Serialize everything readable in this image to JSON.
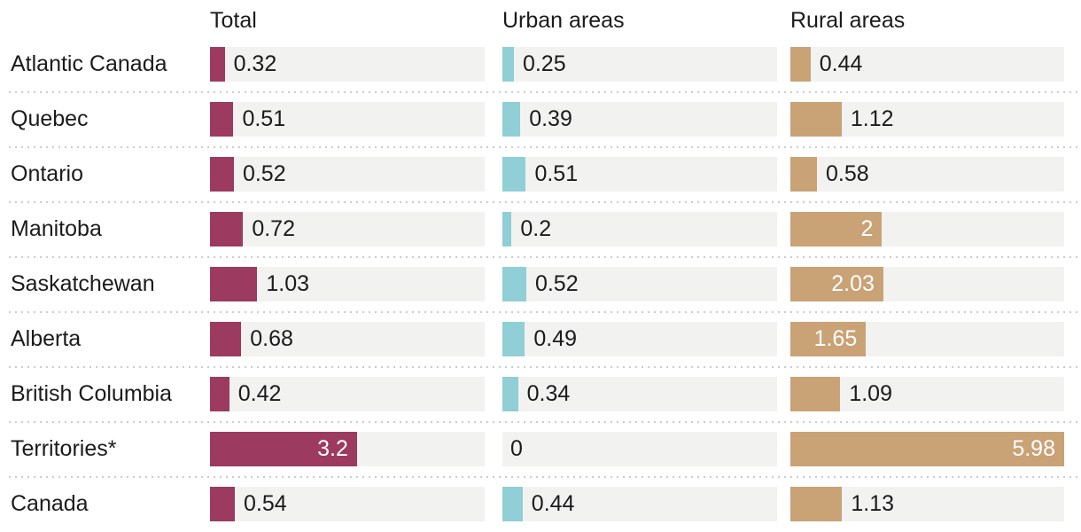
{
  "chart_data": {
    "type": "bar",
    "orientation": "horizontal",
    "columns": [
      "Total",
      "Urban areas",
      "Rural areas"
    ],
    "categories": [
      "Atlantic Canada",
      "Quebec",
      "Ontario",
      "Manitoba",
      "Saskatchewan",
      "Alberta",
      "British Columbia",
      "Territories*",
      "Canada"
    ],
    "series": [
      {
        "name": "Total",
        "color": "#9c3a60",
        "values": [
          0.32,
          0.51,
          0.52,
          0.72,
          1.03,
          0.68,
          0.42,
          3.2,
          0.54
        ],
        "labels": [
          "0.32",
          "0.51",
          "0.52",
          "0.72",
          "1.03",
          "0.68",
          "0.42",
          "3.2",
          "0.54"
        ]
      },
      {
        "name": "Urban areas",
        "color": "#8fcfd5",
        "values": [
          0.25,
          0.39,
          0.51,
          0.2,
          0.52,
          0.49,
          0.34,
          0,
          0.44
        ],
        "labels": [
          "0.25",
          "0.39",
          "0.51",
          "0.2",
          "0.52",
          "0.49",
          "0.34",
          "0",
          "0.44"
        ]
      },
      {
        "name": "Rural areas",
        "color": "#c9a276",
        "values": [
          0.44,
          1.12,
          0.58,
          2,
          2.03,
          1.65,
          1.09,
          5.98,
          1.13
        ],
        "labels": [
          "0.44",
          "1.12",
          "0.58",
          "2",
          "2.03",
          "1.65",
          "1.09",
          "5.98",
          "1.13"
        ]
      }
    ],
    "xmax": 5.98,
    "grid": "dotted-row-separators",
    "legend_position": "column-headers"
  },
  "style": {
    "track_color": "#f2f2f1",
    "separator_color": "#cccccc",
    "text_color": "#1b1b1b",
    "inside_label_color": "#ffffff"
  }
}
